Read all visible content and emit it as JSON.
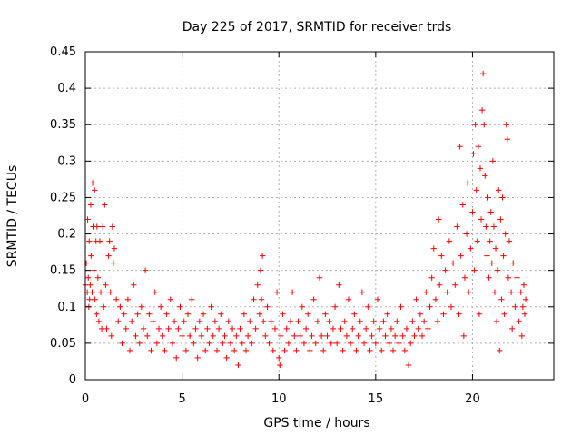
{
  "chart_data": {
    "type": "scatter",
    "title": "Day 225 of 2017, SRMTID for receiver trds",
    "xlabel": "GPS time / hours",
    "ylabel": "SRMTID / TECUs",
    "xlim": [
      0,
      24.2
    ],
    "ylim": [
      0,
      0.45
    ],
    "xticks": [
      0,
      5,
      10,
      15,
      20
    ],
    "xtick_labels": [
      "0",
      "5",
      "10",
      "15",
      "20"
    ],
    "yticks": [
      0,
      0.05,
      0.1,
      0.15,
      0.2,
      0.25,
      0.3,
      0.35,
      0.4,
      0.45
    ],
    "ytick_labels": [
      "0",
      "0.05",
      "0.1",
      "0.15",
      "0.2",
      "0.25",
      "0.3",
      "0.35",
      "0.4",
      "0.45"
    ],
    "grid": true,
    "marker": "plus",
    "color": "#ff0000",
    "series": [
      {
        "name": "SRMTID",
        "points": [
          [
            0.0,
            0.13
          ],
          [
            0.05,
            0.16
          ],
          [
            0.1,
            0.12
          ],
          [
            0.12,
            0.22
          ],
          [
            0.15,
            0.14
          ],
          [
            0.18,
            0.1
          ],
          [
            0.2,
            0.19
          ],
          [
            0.22,
            0.11
          ],
          [
            0.25,
            0.13
          ],
          [
            0.28,
            0.24
          ],
          [
            0.3,
            0.17
          ],
          [
            0.35,
            0.12
          ],
          [
            0.38,
            0.27
          ],
          [
            0.4,
            0.21
          ],
          [
            0.45,
            0.15
          ],
          [
            0.48,
            0.26
          ],
          [
            0.5,
            0.11
          ],
          [
            0.55,
            0.19
          ],
          [
            0.58,
            0.09
          ],
          [
            0.6,
            0.21
          ],
          [
            0.65,
            0.14
          ],
          [
            0.7,
            0.08
          ],
          [
            0.75,
            0.19
          ],
          [
            0.8,
            0.12
          ],
          [
            0.85,
            0.07
          ],
          [
            0.9,
            0.21
          ],
          [
            0.95,
            0.1
          ],
          [
            1.0,
            0.24
          ],
          [
            1.05,
            0.13
          ],
          [
            1.1,
            0.07
          ],
          [
            1.2,
            0.17
          ],
          [
            1.25,
            0.19
          ],
          [
            1.3,
            0.12
          ],
          [
            1.35,
            0.06
          ],
          [
            1.4,
            0.21
          ],
          [
            1.45,
            0.16
          ],
          [
            1.5,
            0.18
          ],
          [
            1.6,
            0.11
          ],
          [
            1.7,
            0.08
          ],
          [
            1.8,
            0.1
          ],
          [
            1.9,
            0.05
          ],
          [
            2.0,
            0.09
          ],
          [
            2.1,
            0.07
          ],
          [
            2.2,
            0.11
          ],
          [
            2.3,
            0.04
          ],
          [
            2.4,
            0.08
          ],
          [
            2.5,
            0.13
          ],
          [
            2.6,
            0.06
          ],
          [
            2.7,
            0.09
          ],
          [
            2.8,
            0.05
          ],
          [
            2.9,
            0.1
          ],
          [
            3.0,
            0.07
          ],
          [
            3.1,
            0.15
          ],
          [
            3.2,
            0.06
          ],
          [
            3.3,
            0.09
          ],
          [
            3.4,
            0.04
          ],
          [
            3.5,
            0.08
          ],
          [
            3.6,
            0.12
          ],
          [
            3.7,
            0.05
          ],
          [
            3.8,
            0.07
          ],
          [
            3.9,
            0.1
          ],
          [
            4.0,
            0.06
          ],
          [
            4.1,
            0.04
          ],
          [
            4.2,
            0.09
          ],
          [
            4.3,
            0.07
          ],
          [
            4.4,
            0.11
          ],
          [
            4.5,
            0.05
          ],
          [
            4.6,
            0.08
          ],
          [
            4.7,
            0.03
          ],
          [
            4.8,
            0.07
          ],
          [
            4.9,
            0.1
          ],
          [
            5.0,
            0.06
          ],
          [
            5.1,
            0.08
          ],
          [
            5.2,
            0.04
          ],
          [
            5.3,
            0.09
          ],
          [
            5.4,
            0.06
          ],
          [
            5.5,
            0.11
          ],
          [
            5.6,
            0.05
          ],
          [
            5.7,
            0.07
          ],
          [
            5.8,
            0.03
          ],
          [
            5.9,
            0.08
          ],
          [
            6.0,
            0.06
          ],
          [
            6.1,
            0.09
          ],
          [
            6.2,
            0.04
          ],
          [
            6.3,
            0.07
          ],
          [
            6.4,
            0.05
          ],
          [
            6.5,
            0.1
          ],
          [
            6.6,
            0.06
          ],
          [
            6.7,
            0.08
          ],
          [
            6.8,
            0.04
          ],
          [
            6.9,
            0.07
          ],
          [
            7.0,
            0.09
          ],
          [
            7.1,
            0.05
          ],
          [
            7.2,
            0.06
          ],
          [
            7.3,
            0.03
          ],
          [
            7.4,
            0.08
          ],
          [
            7.5,
            0.05
          ],
          [
            7.6,
            0.07
          ],
          [
            7.7,
            0.04
          ],
          [
            7.8,
            0.06
          ],
          [
            7.9,
            0.02
          ],
          [
            8.0,
            0.07
          ],
          [
            8.1,
            0.05
          ],
          [
            8.2,
            0.09
          ],
          [
            8.3,
            0.04
          ],
          [
            8.4,
            0.06
          ],
          [
            8.5,
            0.08
          ],
          [
            8.6,
            0.05
          ],
          [
            8.7,
            0.11
          ],
          [
            8.8,
            0.07
          ],
          [
            8.9,
            0.13
          ],
          [
            9.0,
            0.09
          ],
          [
            9.05,
            0.15
          ],
          [
            9.1,
            0.11
          ],
          [
            9.15,
            0.17
          ],
          [
            9.2,
            0.08
          ],
          [
            9.3,
            0.06
          ],
          [
            9.4,
            0.1
          ],
          [
            9.5,
            0.05
          ],
          [
            9.6,
            0.08
          ],
          [
            9.7,
            0.04
          ],
          [
            9.8,
            0.07
          ],
          [
            9.9,
            0.12
          ],
          [
            10.0,
            0.03
          ],
          [
            10.05,
            0.02
          ],
          [
            10.1,
            0.06
          ],
          [
            10.2,
            0.09
          ],
          [
            10.3,
            0.04
          ],
          [
            10.4,
            0.07
          ],
          [
            10.5,
            0.05
          ],
          [
            10.6,
            0.08
          ],
          [
            10.7,
            0.12
          ],
          [
            10.8,
            0.06
          ],
          [
            10.9,
            0.04
          ],
          [
            11.0,
            0.08
          ],
          [
            11.1,
            0.06
          ],
          [
            11.2,
            0.1
          ],
          [
            11.3,
            0.05
          ],
          [
            11.4,
            0.07
          ],
          [
            11.5,
            0.09
          ],
          [
            11.6,
            0.04
          ],
          [
            11.7,
            0.06
          ],
          [
            11.8,
            0.11
          ],
          [
            11.9,
            0.05
          ],
          [
            12.0,
            0.08
          ],
          [
            12.1,
            0.14
          ],
          [
            12.2,
            0.06
          ],
          [
            12.3,
            0.04
          ],
          [
            12.4,
            0.09
          ],
          [
            12.5,
            0.06
          ],
          [
            12.6,
            0.08
          ],
          [
            12.7,
            0.05
          ],
          [
            12.8,
            0.07
          ],
          [
            12.9,
            0.1
          ],
          [
            13.0,
            0.05
          ],
          [
            13.1,
            0.13
          ],
          [
            13.2,
            0.07
          ],
          [
            13.3,
            0.04
          ],
          [
            13.4,
            0.08
          ],
          [
            13.5,
            0.06
          ],
          [
            13.6,
            0.11
          ],
          [
            13.7,
            0.05
          ],
          [
            13.8,
            0.07
          ],
          [
            13.9,
            0.09
          ],
          [
            14.0,
            0.04
          ],
          [
            14.1,
            0.06
          ],
          [
            14.2,
            0.08
          ],
          [
            14.3,
            0.12
          ],
          [
            14.4,
            0.05
          ],
          [
            14.5,
            0.07
          ],
          [
            14.6,
            0.1
          ],
          [
            14.7,
            0.04
          ],
          [
            14.8,
            0.06
          ],
          [
            14.9,
            0.08
          ],
          [
            15.0,
            0.05
          ],
          [
            15.1,
            0.11
          ],
          [
            15.2,
            0.07
          ],
          [
            15.3,
            0.04
          ],
          [
            15.4,
            0.08
          ],
          [
            15.5,
            0.06
          ],
          [
            15.6,
            0.09
          ],
          [
            15.7,
            0.05
          ],
          [
            15.8,
            0.07
          ],
          [
            15.9,
            0.04
          ],
          [
            16.0,
            0.06
          ],
          [
            16.1,
            0.08
          ],
          [
            16.2,
            0.05
          ],
          [
            16.3,
            0.1
          ],
          [
            16.4,
            0.06
          ],
          [
            16.5,
            0.04
          ],
          [
            16.6,
            0.07
          ],
          [
            16.7,
            0.02
          ],
          [
            16.8,
            0.05
          ],
          [
            16.9,
            0.08
          ],
          [
            17.0,
            0.06
          ],
          [
            17.1,
            0.11
          ],
          [
            17.2,
            0.07
          ],
          [
            17.3,
            0.09
          ],
          [
            17.4,
            0.06
          ],
          [
            17.5,
            0.08
          ],
          [
            17.6,
            0.12
          ],
          [
            17.7,
            0.07
          ],
          [
            17.8,
            0.1
          ],
          [
            17.9,
            0.14
          ],
          [
            18.0,
            0.18
          ],
          [
            18.1,
            0.11
          ],
          [
            18.2,
            0.08
          ],
          [
            18.25,
            0.22
          ],
          [
            18.3,
            0.13
          ],
          [
            18.4,
            0.17
          ],
          [
            18.5,
            0.09
          ],
          [
            18.6,
            0.15
          ],
          [
            18.7,
            0.12
          ],
          [
            18.8,
            0.19
          ],
          [
            18.9,
            0.1
          ],
          [
            19.0,
            0.16
          ],
          [
            19.1,
            0.13
          ],
          [
            19.2,
            0.21
          ],
          [
            19.3,
            0.09
          ],
          [
            19.35,
            0.32
          ],
          [
            19.4,
            0.17
          ],
          [
            19.5,
            0.24
          ],
          [
            19.55,
            0.06
          ],
          [
            19.6,
            0.14
          ],
          [
            19.7,
            0.2
          ],
          [
            19.75,
            0.27
          ],
          [
            19.8,
            0.12
          ],
          [
            19.9,
            0.18
          ],
          [
            20.0,
            0.23
          ],
          [
            20.05,
            0.31
          ],
          [
            20.1,
            0.15
          ],
          [
            20.15,
            0.35
          ],
          [
            20.2,
            0.26
          ],
          [
            20.25,
            0.19
          ],
          [
            20.3,
            0.32
          ],
          [
            20.35,
            0.09
          ],
          [
            20.4,
            0.29
          ],
          [
            20.45,
            0.22
          ],
          [
            20.5,
            0.37
          ],
          [
            20.55,
            0.42
          ],
          [
            20.6,
            0.35
          ],
          [
            20.65,
            0.28
          ],
          [
            20.7,
            0.21
          ],
          [
            20.75,
            0.17
          ],
          [
            20.8,
            0.25
          ],
          [
            20.85,
            0.14
          ],
          [
            20.9,
            0.19
          ],
          [
            20.95,
            0.23
          ],
          [
            21.0,
            0.16
          ],
          [
            21.05,
            0.3
          ],
          [
            21.1,
            0.21
          ],
          [
            21.15,
            0.12
          ],
          [
            21.2,
            0.18
          ],
          [
            21.25,
            0.08
          ],
          [
            21.3,
            0.15
          ],
          [
            21.35,
            0.26
          ],
          [
            21.4,
            0.04
          ],
          [
            21.45,
            0.22
          ],
          [
            21.5,
            0.11
          ],
          [
            21.55,
            0.25
          ],
          [
            21.6,
            0.17
          ],
          [
            21.65,
            0.09
          ],
          [
            21.7,
            0.2
          ],
          [
            21.75,
            0.35
          ],
          [
            21.8,
            0.33
          ],
          [
            21.85,
            0.14
          ],
          [
            21.9,
            0.19
          ],
          [
            22.0,
            0.12
          ],
          [
            22.05,
            0.07
          ],
          [
            22.1,
            0.16
          ],
          [
            22.2,
            0.1
          ],
          [
            22.3,
            0.14
          ],
          [
            22.4,
            0.08
          ],
          [
            22.5,
            0.12
          ],
          [
            22.55,
            0.06
          ],
          [
            22.6,
            0.1
          ],
          [
            22.65,
            0.13
          ],
          [
            22.7,
            0.09
          ],
          [
            22.75,
            0.11
          ]
        ]
      }
    ]
  }
}
